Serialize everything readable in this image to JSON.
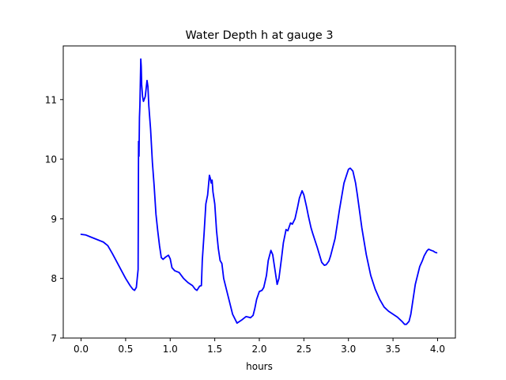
{
  "chart_data": {
    "type": "line",
    "title": "Water Depth h at gauge 3",
    "xlabel": "hours",
    "ylabel": "",
    "xlim": [
      -0.2,
      4.2
    ],
    "ylim": [
      7.0,
      11.9
    ],
    "xticks": [
      0.0,
      0.5,
      1.0,
      1.5,
      2.0,
      2.5,
      3.0,
      3.5,
      4.0
    ],
    "xtick_labels": [
      "0.0",
      "0.5",
      "1.0",
      "1.5",
      "2.0",
      "2.5",
      "3.0",
      "3.5",
      "4.0"
    ],
    "yticks": [
      7,
      8,
      9,
      10,
      11
    ],
    "ytick_labels": [
      "7",
      "8",
      "9",
      "10",
      "11"
    ],
    "grid": false,
    "legend": "none",
    "series": [
      {
        "color": "#0000ff",
        "x": [
          0.0,
          0.05,
          0.1,
          0.15,
          0.2,
          0.25,
          0.3,
          0.35,
          0.4,
          0.45,
          0.5,
          0.55,
          0.58,
          0.6,
          0.62,
          0.64,
          0.645,
          0.65,
          0.655,
          0.66,
          0.67,
          0.675,
          0.68,
          0.69,
          0.7,
          0.72,
          0.74,
          0.75,
          0.76,
          0.78,
          0.8,
          0.82,
          0.84,
          0.86,
          0.88,
          0.9,
          0.92,
          0.95,
          0.98,
          1.0,
          1.02,
          1.05,
          1.1,
          1.15,
          1.2,
          1.25,
          1.28,
          1.3,
          1.33,
          1.35,
          1.36,
          1.38,
          1.4,
          1.42,
          1.44,
          1.45,
          1.46,
          1.47,
          1.48,
          1.5,
          1.52,
          1.54,
          1.56,
          1.58,
          1.6,
          1.65,
          1.7,
          1.75,
          1.8,
          1.85,
          1.88,
          1.9,
          1.93,
          1.95,
          1.97,
          2.0,
          2.03,
          2.05,
          2.08,
          2.1,
          2.13,
          2.15,
          2.17,
          2.2,
          2.22,
          2.25,
          2.27,
          2.3,
          2.32,
          2.35,
          2.37,
          2.4,
          2.43,
          2.45,
          2.48,
          2.5,
          2.53,
          2.55,
          2.58,
          2.6,
          2.65,
          2.7,
          2.73,
          2.75,
          2.78,
          2.8,
          2.85,
          2.9,
          2.95,
          3.0,
          3.02,
          3.05,
          3.08,
          3.1,
          3.15,
          3.2,
          3.25,
          3.3,
          3.35,
          3.4,
          3.45,
          3.5,
          3.55,
          3.6,
          3.63,
          3.65,
          3.68,
          3.7,
          3.72,
          3.75,
          3.8,
          3.83,
          3.85,
          3.88,
          3.9,
          3.93,
          3.95,
          3.97,
          3.99
        ],
        "y": [
          8.74,
          8.73,
          8.7,
          8.67,
          8.64,
          8.61,
          8.55,
          8.42,
          8.28,
          8.14,
          8.0,
          7.88,
          7.82,
          7.8,
          7.85,
          8.15,
          10.3,
          10.05,
          10.7,
          10.9,
          11.68,
          11.55,
          11.25,
          11.05,
          10.97,
          11.05,
          11.32,
          11.22,
          10.9,
          10.5,
          9.95,
          9.55,
          9.08,
          8.8,
          8.55,
          8.35,
          8.32,
          8.36,
          8.39,
          8.33,
          8.18,
          8.13,
          8.1,
          8.0,
          7.93,
          7.88,
          7.82,
          7.8,
          7.87,
          7.88,
          8.3,
          8.75,
          9.25,
          9.4,
          9.73,
          9.68,
          9.6,
          9.65,
          9.45,
          9.25,
          8.8,
          8.5,
          8.3,
          8.25,
          8.0,
          7.7,
          7.4,
          7.25,
          7.3,
          7.36,
          7.35,
          7.34,
          7.38,
          7.5,
          7.65,
          7.78,
          7.8,
          7.85,
          8.05,
          8.3,
          8.47,
          8.4,
          8.2,
          7.9,
          8.0,
          8.35,
          8.6,
          8.82,
          8.8,
          8.93,
          8.91,
          9.0,
          9.2,
          9.35,
          9.47,
          9.4,
          9.2,
          9.05,
          8.85,
          8.75,
          8.52,
          8.27,
          8.22,
          8.23,
          8.29,
          8.38,
          8.67,
          9.16,
          9.6,
          9.83,
          9.85,
          9.8,
          9.6,
          9.4,
          8.85,
          8.4,
          8.05,
          7.82,
          7.65,
          7.52,
          7.45,
          7.4,
          7.35,
          7.28,
          7.23,
          7.23,
          7.28,
          7.4,
          7.6,
          7.9,
          8.2,
          8.3,
          8.38,
          8.46,
          8.49,
          8.47,
          8.46,
          8.44,
          8.43
        ]
      }
    ]
  }
}
